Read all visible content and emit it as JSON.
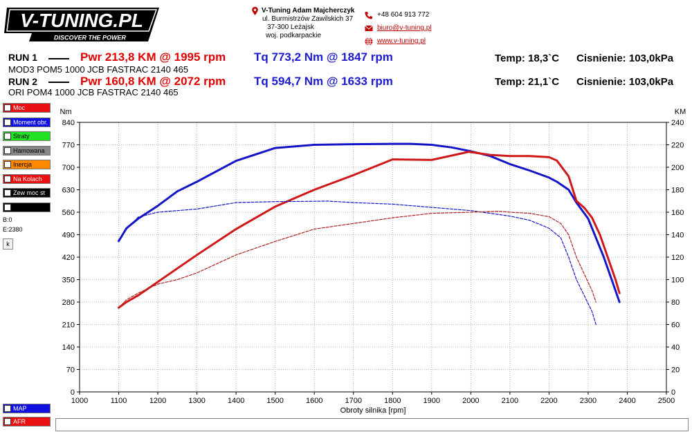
{
  "header": {
    "logo": "V-TUNING.PL",
    "tagline": "DISCOVER THE POWER",
    "company": "V-Tuning Adam Majcherczyk",
    "address1": "ul. Burmistrzów Zawilskich 37",
    "address2": "37-300 Leżajsk",
    "address3": "woj. podkarpackie",
    "phone": "+48 604 913 772",
    "email": "biuro@v-tuning.pl",
    "website": "www.v-tuning.pl",
    "icons": [
      "map-pin-icon",
      "phone-icon",
      "mail-icon",
      "globe-icon"
    ]
  },
  "runs": [
    {
      "label": "RUN 1",
      "pwr": "Pwr  213,8 KM @ 1995 rpm",
      "tq": "Tq 773,2 Nm @ 1847 rpm",
      "temp": "Temp: 18,3`C",
      "pressure": "Cisnienie: 103,0kPa",
      "desc": "MOD3 POM5 1000 JCB FASTRAC 2140 465"
    },
    {
      "label": "RUN 2",
      "pwr": "Pwr  160,8 KM @ 2072 rpm",
      "tq": "Tq 594,7 Nm @ 1633 rpm",
      "temp": "Temp: 21,1`C",
      "pressure": "Cisnienie: 103,0kPa",
      "desc": "ORI POM4 1000 JCB FASTRAC 2140 465"
    }
  ],
  "sidebar": {
    "items": [
      {
        "label": "Moc",
        "checked": true,
        "color": "#e81010",
        "text": "#ffffff"
      },
      {
        "label": "Moment obr.",
        "checked": true,
        "color": "#1010e0",
        "text": "#ffffff"
      },
      {
        "label": "Straty",
        "checked": false,
        "color": "#22e022",
        "text": "#000000"
      },
      {
        "label": "Hamowana",
        "checked": false,
        "color": "#888888",
        "text": "#000000"
      },
      {
        "label": "Inercja",
        "checked": false,
        "color": "#ff8800",
        "text": "#000000"
      },
      {
        "label": "Na Kolach",
        "checked": false,
        "color": "#e81010",
        "text": "#ffffff"
      },
      {
        "label": "Zew moc st",
        "checked": true,
        "color": "#000000",
        "text": "#ffffff"
      },
      {
        "label": "",
        "checked": false,
        "color": "#000000",
        "text": "#ffffff"
      }
    ],
    "b_value": "B:0",
    "e_value": "E:2380",
    "k_button": "k",
    "bottom_items": [
      {
        "label": "MAP",
        "checked": false,
        "color": "#1010e0",
        "text": "#ffffff"
      },
      {
        "label": "AFR",
        "checked": false,
        "color": "#e81010",
        "text": "#ffffff"
      }
    ]
  },
  "chart_data": {
    "type": "line",
    "xlabel": "Obroty silnika [rpm]",
    "ylabel_left": "Nm",
    "ylabel_right": "KM",
    "xlim": [
      1000,
      2500
    ],
    "ylim_left": [
      0,
      840
    ],
    "ylim_right": [
      0,
      240
    ],
    "x_ticks": [
      1000,
      1100,
      1200,
      1300,
      1400,
      1500,
      1600,
      1700,
      1800,
      1900,
      2000,
      2100,
      2200,
      2300,
      2400,
      2500
    ],
    "y_ticks_left": [
      0,
      70,
      140,
      210,
      280,
      350,
      420,
      490,
      560,
      630,
      700,
      770,
      840
    ],
    "y_ticks_right": [
      0,
      20,
      40,
      60,
      80,
      100,
      120,
      140,
      160,
      180,
      200,
      220,
      240
    ],
    "grid": true,
    "series": [
      {
        "name": "",
        "axis": "left",
        "color": "#1515c8",
        "dash": false,
        "x": [
          1100,
          1110,
          1120,
          1150,
          1200,
          1250,
          1300,
          1400,
          1500,
          1600,
          1700,
          1800,
          1847,
          1900,
          1950,
          2000,
          2050,
          2100,
          2150,
          2200,
          2220,
          2250,
          2270,
          2300,
          2320,
          2340,
          2360,
          2380
        ],
        "y": [
          470,
          490,
          510,
          540,
          580,
          625,
          655,
          720,
          760,
          770,
          772,
          773,
          773,
          770,
          762,
          750,
          735,
          710,
          690,
          668,
          655,
          630,
          590,
          540,
          480,
          420,
          350,
          280
        ]
      },
      {
        "name": "",
        "axis": "right",
        "color": "#d01818",
        "dash": false,
        "x": [
          1100,
          1120,
          1150,
          1200,
          1250,
          1300,
          1400,
          1500,
          1600,
          1700,
          1800,
          1900,
          1995,
          2050,
          2100,
          2150,
          2200,
          2220,
          2250,
          2270,
          2290,
          2310,
          2330,
          2350,
          2370,
          2380
        ],
        "y": [
          75,
          80,
          86,
          98,
          110,
          122,
          145,
          165,
          180,
          193,
          207,
          206.5,
          213.8,
          211,
          210,
          210,
          209,
          206,
          192,
          170,
          164,
          155,
          140,
          120,
          100,
          88
        ]
      },
      {
        "name": "",
        "axis": "left",
        "color": "#1515c8",
        "dash": true,
        "x": [
          1100,
          1115,
          1130,
          1150,
          1200,
          1250,
          1300,
          1400,
          1500,
          1600,
          1633,
          1700,
          1800,
          1900,
          2000,
          2100,
          2150,
          2200,
          2230,
          2250,
          2270,
          2290,
          2310,
          2320
        ],
        "y": [
          470,
          500,
          520,
          545,
          560,
          565,
          570,
          590,
          593,
          594,
          594.7,
          590,
          585,
          575,
          565,
          548,
          535,
          510,
          480,
          420,
          350,
          300,
          250,
          210
        ]
      },
      {
        "name": "",
        "axis": "right",
        "color": "#b02020",
        "dash": true,
        "x": [
          1100,
          1120,
          1150,
          1200,
          1250,
          1300,
          1400,
          1500,
          1600,
          1700,
          1800,
          1900,
          2000,
          2072,
          2100,
          2150,
          2200,
          2230,
          2250,
          2270,
          2290,
          2310,
          2320
        ],
        "y": [
          75,
          82,
          88,
          96,
          100,
          106,
          122,
          134,
          145,
          150,
          155,
          159,
          160,
          160.8,
          160,
          159,
          156,
          150,
          140,
          120,
          105,
          90,
          80
        ]
      }
    ]
  }
}
